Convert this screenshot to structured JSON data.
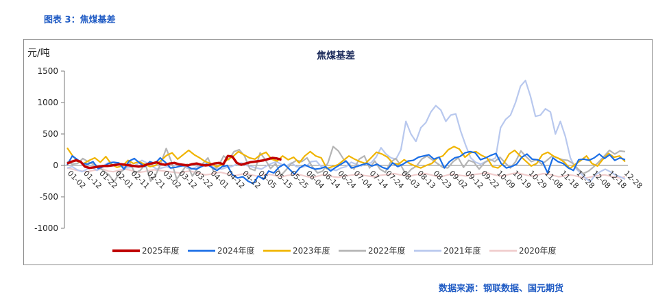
{
  "figure_title": "图表 3：焦煤基差",
  "source_text": "数据来源：钢联数据、国元期货",
  "chart_data": {
    "type": "line",
    "title": "焦煤基差",
    "ylabel": "元/吨",
    "xlabel": "",
    "ylim": [
      -1000,
      1500
    ],
    "yticks": [
      1500,
      1000,
      500,
      0,
      -500,
      -1000
    ],
    "x_tick_labels": [
      "01-02",
      "01-12",
      "01-22",
      "02-01",
      "02-11",
      "02-21",
      "03-02",
      "03-12",
      "03-22",
      "04-01",
      "04-12",
      "04-22",
      "05-05",
      "05-15",
      "05-25",
      "06-04",
      "06-14",
      "06-24",
      "07-04",
      "07-14",
      "07-24",
      "08-03",
      "08-13",
      "08-23",
      "09-02",
      "09-12",
      "09-22",
      "10-09",
      "10-19",
      "10-29",
      "11-08",
      "11-18",
      "11-28",
      "12-08",
      "12-18",
      "12-28"
    ],
    "grid": false,
    "legend_position": "bottom",
    "series": [
      {
        "name": "2025年度",
        "color": "#c00000",
        "width": 3.5,
        "values": [
          30,
          60,
          80,
          60,
          -20,
          -40,
          -30,
          -20,
          -10,
          -10,
          0,
          10,
          20,
          10,
          0,
          -10,
          -20,
          -10,
          20,
          30,
          50,
          20,
          10,
          30,
          40,
          20,
          10,
          0,
          20,
          30,
          10,
          0,
          10,
          30,
          40,
          20,
          150,
          140,
          40,
          10,
          30,
          50,
          60,
          70,
          80,
          100,
          120,
          110,
          90
        ]
      },
      {
        "name": "2024年度",
        "color": "#1a6ee6",
        "width": 2.2,
        "values": [
          10,
          150,
          90,
          30,
          20,
          60,
          -50,
          -20,
          30,
          50,
          40,
          -60,
          70,
          110,
          40,
          -20,
          60,
          30,
          120,
          50,
          -40,
          -30,
          -10,
          0,
          -50,
          -60,
          -20,
          20,
          -30,
          -80,
          -20,
          0,
          -150,
          -200,
          -180,
          -250,
          -290,
          -170,
          -220,
          -90,
          -120,
          -30,
          20,
          -60,
          -140,
          -40,
          10,
          -30,
          -60,
          -50,
          -20,
          -90,
          -30,
          20,
          70,
          -40,
          -20,
          10,
          30,
          -10,
          20,
          -30,
          -60,
          40,
          -20,
          20,
          70,
          80,
          130,
          150,
          170,
          100,
          130,
          -40,
          60,
          120,
          140,
          200,
          220,
          200,
          90,
          120,
          160,
          190,
          30,
          -40,
          -20,
          20,
          130,
          180,
          100,
          90,
          60,
          -120,
          120,
          60,
          30,
          -40,
          -80,
          90,
          100,
          80,
          120,
          180,
          110,
          170,
          80,
          120,
          90
        ]
      },
      {
        "name": "2023年度",
        "color": "#f0b400",
        "width": 2.2,
        "values": [
          280,
          150,
          60,
          30,
          80,
          120,
          50,
          140,
          20,
          -30,
          -10,
          80,
          30,
          60,
          20,
          -20,
          0,
          80,
          160,
          200,
          100,
          170,
          240,
          170,
          120,
          60,
          30,
          -20,
          10,
          90,
          140,
          220,
          170,
          120,
          100,
          170,
          210,
          100,
          70,
          150,
          90,
          130,
          40,
          150,
          220,
          150,
          120,
          -50,
          -20,
          10,
          80,
          150,
          100,
          60,
          30,
          120,
          210,
          180,
          130,
          30,
          20,
          90,
          30,
          -10,
          -40,
          0,
          30,
          120,
          150,
          250,
          300,
          260,
          130,
          200,
          220,
          160,
          120,
          -20,
          -40,
          30,
          180,
          240,
          150,
          70,
          -10,
          30,
          170,
          210,
          150,
          110,
          50,
          -50,
          20,
          80,
          150,
          30,
          -10,
          100,
          190,
          130,
          150,
          60
        ]
      },
      {
        "name": "2022年度",
        "color": "#b4b4b4",
        "width": 2.2,
        "values": [
          60,
          20,
          30,
          110,
          60,
          20,
          -10,
          -90,
          -150,
          -260,
          -120,
          -60,
          40,
          -120,
          -80,
          20,
          -250,
          -150,
          40,
          270,
          60,
          -220,
          -100,
          20,
          -170,
          -50,
          30,
          120,
          -80,
          -10,
          150,
          90,
          220,
          250,
          150,
          -50,
          -80,
          200,
          90,
          -50,
          30,
          -160,
          -70,
          30,
          80,
          60,
          120,
          -20,
          -120,
          -90,
          40,
          300,
          230,
          100,
          30,
          -60,
          100,
          150,
          -40,
          70,
          -60,
          -110,
          50,
          110,
          0,
          -150,
          -60,
          -10,
          100,
          150,
          90,
          30,
          -30,
          -40,
          60,
          120,
          -30,
          80,
          50,
          -60,
          40,
          100,
          60,
          130,
          40,
          -40,
          60,
          230,
          140,
          60,
          90,
          20,
          80,
          150,
          120,
          90,
          80,
          30,
          -60,
          -130,
          -90,
          -20,
          60,
          150,
          240,
          180,
          230,
          220
        ]
      },
      {
        "name": "2021年度",
        "color": "#b8c8ee",
        "width": 2.2,
        "values": [
          -40,
          -20,
          -70,
          -100,
          -60,
          -30,
          -80,
          -20,
          30,
          60,
          20,
          -10,
          -40,
          -30,
          20,
          80,
          40,
          -10,
          -60,
          -40,
          -20,
          -50,
          30,
          10,
          -40,
          -60,
          -20,
          10,
          30,
          -20,
          -40,
          -60,
          -30,
          -20,
          20,
          40,
          0,
          -20,
          -40,
          -60,
          -10,
          30,
          60,
          20,
          -10,
          40,
          -20,
          -30,
          -10,
          60,
          70,
          -20,
          -50,
          -60,
          -80,
          -40,
          -20,
          50,
          20,
          -10,
          30,
          40,
          130,
          280,
          180,
          120,
          100,
          250,
          700,
          500,
          380,
          600,
          680,
          850,
          950,
          880,
          700,
          800,
          820,
          540,
          320,
          120,
          50,
          20,
          60,
          80,
          120,
          600,
          730,
          800,
          1000,
          1260,
          1350,
          1100,
          780,
          800,
          900,
          850,
          500,
          700,
          460,
          120,
          -40,
          -120,
          -200,
          -260,
          -150,
          -100,
          -60,
          -100,
          -150,
          -180,
          -220
        ]
      },
      {
        "name": "2020年度",
        "color": "#f0cccc",
        "width": 2.2,
        "values": [
          -40,
          -60,
          -80,
          -90,
          -100,
          -80,
          -70,
          -60,
          -90,
          -100,
          -80,
          -60,
          -70,
          -90,
          -110,
          -100,
          -80,
          -70,
          -80,
          -90,
          -100,
          -110,
          -120,
          -100,
          -90,
          -110,
          -130,
          -150,
          -140,
          -120,
          -110,
          -130,
          -150,
          -160,
          -140,
          -130,
          -150,
          -170,
          -160,
          -140,
          -150,
          -170,
          -180,
          -160,
          -150,
          -140,
          -160,
          -180,
          -190,
          -170,
          -150,
          -160,
          -180,
          -190,
          -170,
          -160,
          -150,
          -140,
          -160,
          -170,
          -180,
          -160,
          -150,
          -140,
          -130,
          -150,
          -160,
          -170,
          -150,
          -140,
          -130,
          -150,
          -170,
          -180,
          -160,
          -140,
          -150,
          -160,
          -170,
          -150,
          -140,
          -130,
          -120,
          -140,
          -160,
          -170,
          -150,
          -130,
          -120,
          -140,
          -160,
          -170,
          -150,
          -130,
          -140,
          -160,
          -180,
          -170,
          -150,
          -160,
          -180,
          -200,
          -190,
          -170,
          -160,
          -150,
          -170,
          -190,
          -200,
          -180
        ]
      }
    ]
  }
}
